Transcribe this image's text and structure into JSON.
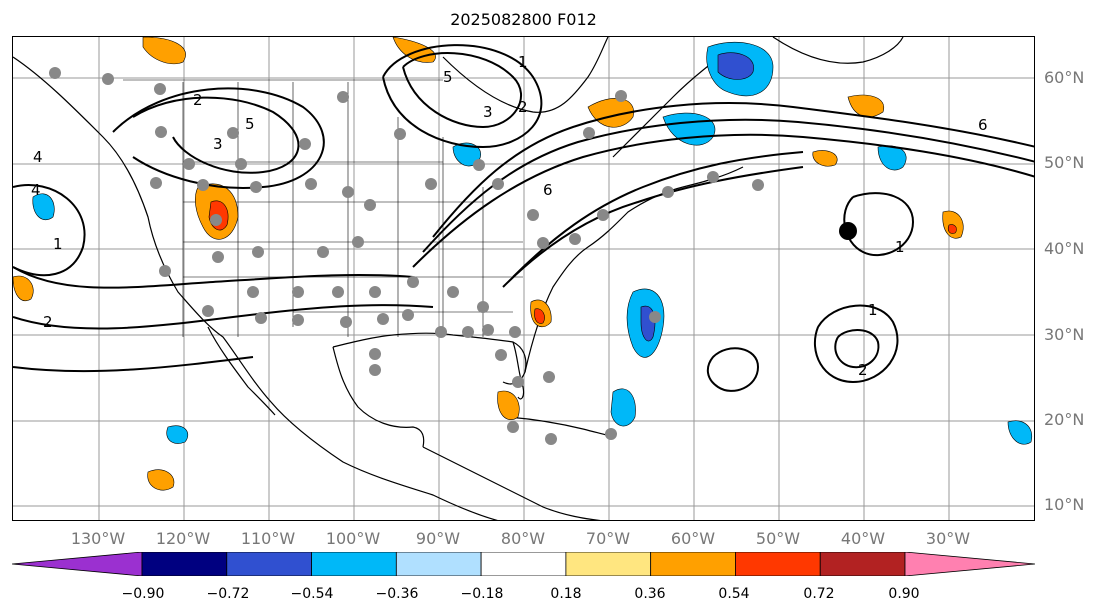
{
  "title": "2025082800 F012",
  "lat_labels": [
    "60°N",
    "50°N",
    "40°N",
    "30°N",
    "20°N",
    "10°N"
  ],
  "lon_labels": [
    "130°W",
    "120°W",
    "110°W",
    "100°W",
    "90°W",
    "80°W",
    "70°W",
    "60°W",
    "50°W",
    "40°W",
    "30°W"
  ],
  "colorbar": {
    "ticks": [
      "−0.90",
      "−0.72",
      "−0.54",
      "−0.36",
      "−0.18",
      "0.18",
      "0.36",
      "0.54",
      "0.72",
      "0.90"
    ],
    "colors": [
      "#9b30d0",
      "#000080",
      "#3050d0",
      "#00b8f8",
      "#b0e0ff",
      "#ffffff",
      "#ffe680",
      "#ffa000",
      "#ff3800",
      "#b22222",
      "#ff80b0"
    ]
  },
  "contour_labels": [
    "5",
    "4",
    "3",
    "2",
    "1",
    "6",
    "5",
    "3",
    "2",
    "1",
    "2",
    "1",
    "2",
    "1",
    "6",
    "4"
  ],
  "colors": {
    "negative_blue": "#00b8f8",
    "dark_blue": "#3050d0",
    "orange": "#ffa000",
    "red": "#ff3800",
    "station_gray": "#888888"
  }
}
